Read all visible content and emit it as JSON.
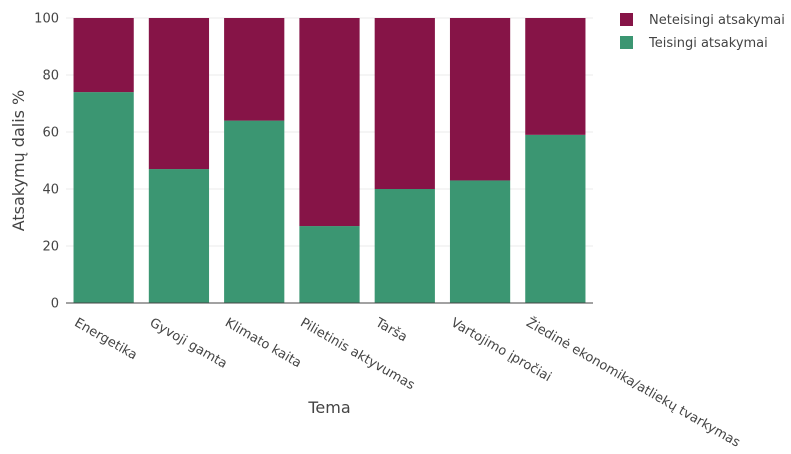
{
  "chart_data": {
    "type": "bar",
    "stacked": true,
    "title": "",
    "xlabel": "Tema",
    "ylabel": "Atsakymų dalis %",
    "ylim": [
      0,
      100
    ],
    "yticks": [
      0,
      20,
      40,
      60,
      80,
      100
    ],
    "categories": [
      "Energetika",
      "Gyvoji gamta",
      "Klimato kaita",
      "Pilietinis aktyvumas",
      "Tarša",
      "Vartojimo įpročiai",
      "Žiedinė ekonomika/atliekų tvarkymas"
    ],
    "series": [
      {
        "name": "Teisingi atsakymai",
        "color": "#3b9672",
        "values": [
          74,
          47,
          64,
          27,
          40,
          43,
          59
        ]
      },
      {
        "name": "Neteisingi atsakymai",
        "color": "#861447",
        "values": [
          26,
          53,
          36,
          73,
          60,
          57,
          41
        ]
      }
    ],
    "legend_order": [
      "Neteisingi atsakymai",
      "Teisingi atsakymai"
    ],
    "legend_position": "top-right",
    "grid": true
  }
}
